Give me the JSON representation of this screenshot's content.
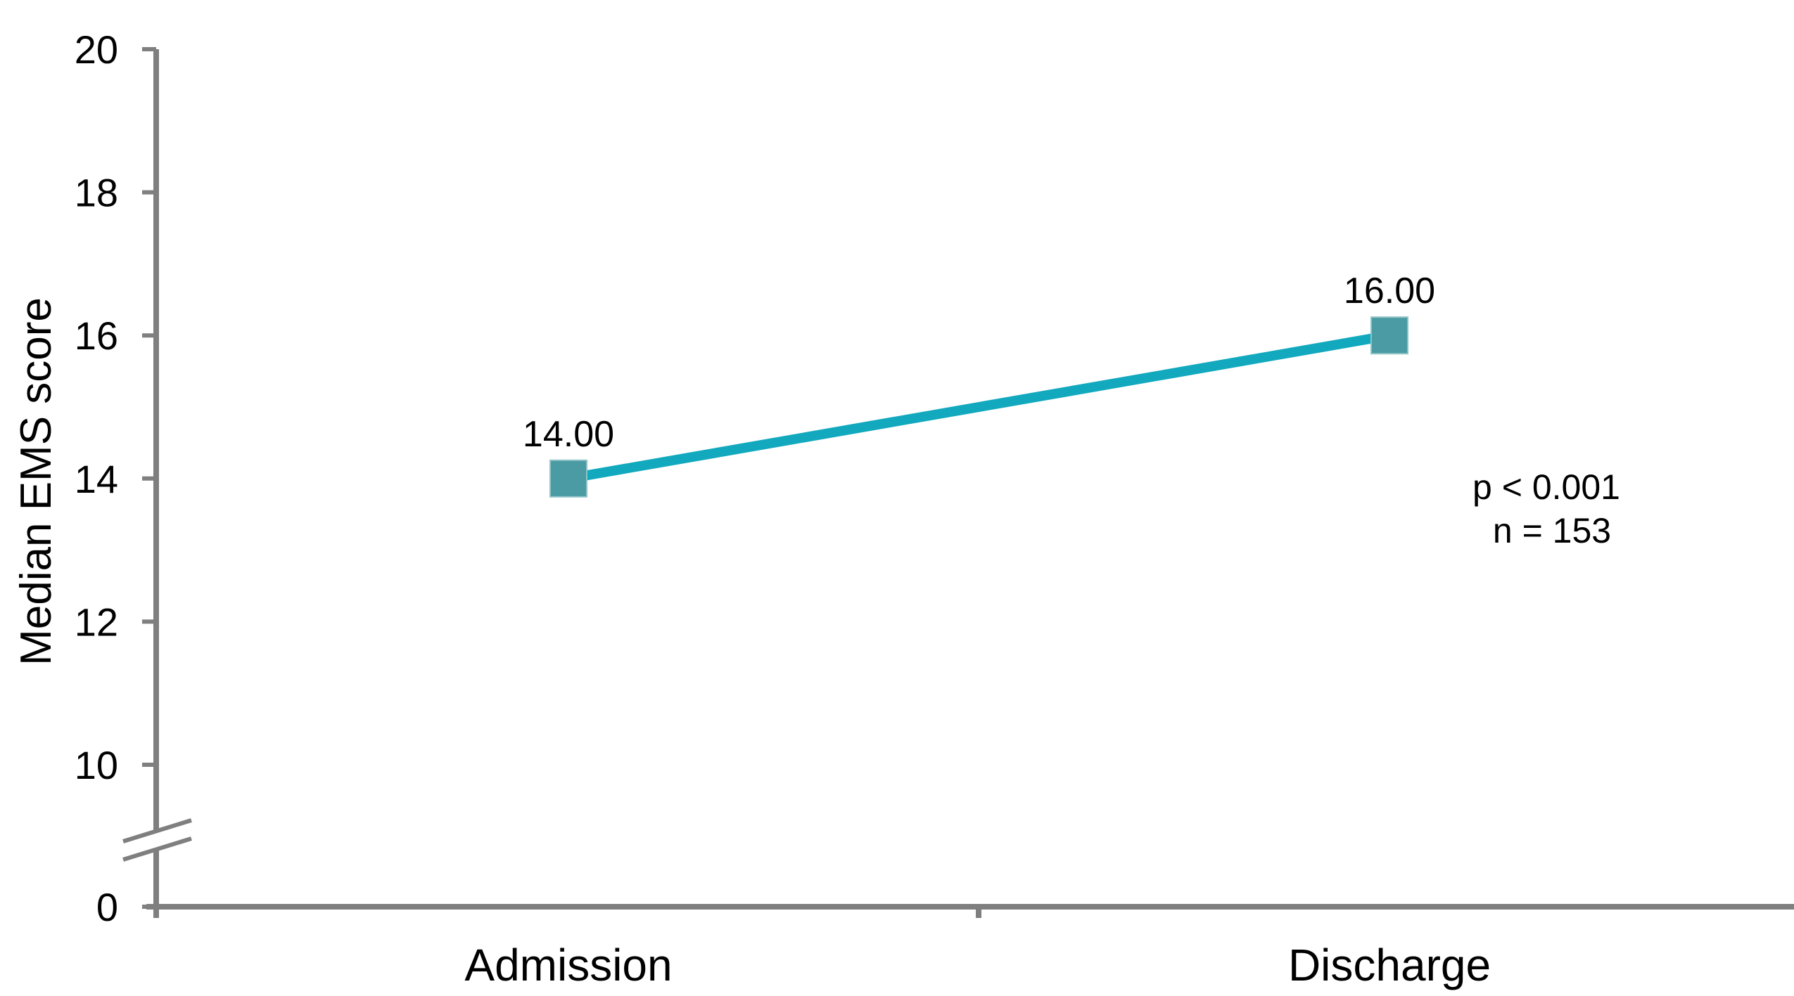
{
  "chart_data": {
    "type": "line",
    "categories": [
      "Admission",
      "Discharge"
    ],
    "series": [
      {
        "values": [
          14.0,
          16.0
        ],
        "data_labels": [
          "14.00",
          "16.00"
        ]
      }
    ],
    "ylabel": "Median EMS score",
    "xlabel": "",
    "title": "",
    "ylim": [
      0,
      20
    ],
    "axis_break": true,
    "y_ticks": [
      0,
      10,
      12,
      14,
      16,
      18,
      20
    ],
    "y_tick_labels": [
      "0",
      "10",
      "12",
      "14",
      "16",
      "18",
      "20"
    ],
    "annotations": [
      "p < 0.001",
      "n = 153"
    ],
    "grid": false,
    "legend": "none",
    "colors": {
      "line": "#12A9BE",
      "marker": "#4A9BA3",
      "axis": "#7F7F7F"
    }
  }
}
